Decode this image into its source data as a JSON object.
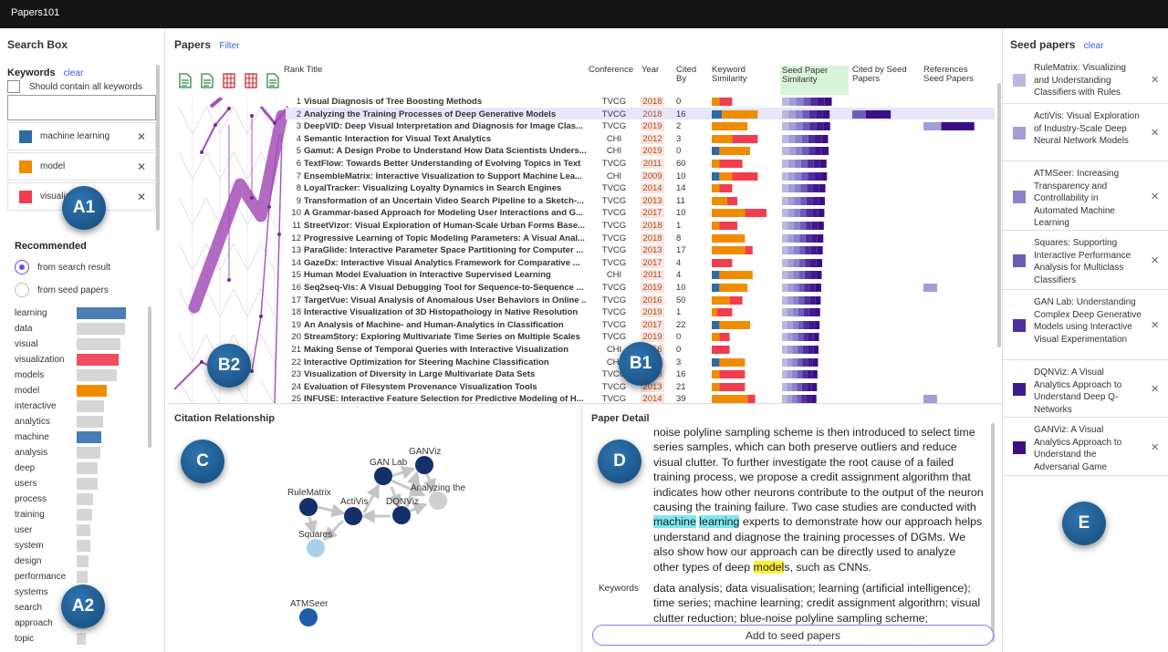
{
  "app": {
    "title": "Papers101"
  },
  "search_box": {
    "title": "Search Box",
    "keywords_label": "Keywords",
    "clear_label": "clear",
    "contain_all_label": "Should contain all keywords",
    "input_value": "",
    "keywords": [
      {
        "label": "machine learning",
        "color": "#2f6aa3"
      },
      {
        "label": "model",
        "color": "#f08c00"
      },
      {
        "label": "visualization",
        "color": "#f03e4e"
      }
    ]
  },
  "recommended": {
    "title": "Recommended",
    "options": [
      {
        "label": "from search result",
        "selected": true
      },
      {
        "label": "from seed papers",
        "selected": false
      }
    ],
    "keywords": [
      {
        "label": "learning",
        "value": 1.0,
        "color": "#4a7db3"
      },
      {
        "label": "data",
        "value": 0.98,
        "color": "#d6d6d6"
      },
      {
        "label": "visual",
        "value": 0.88,
        "color": "#d6d6d6"
      },
      {
        "label": "visualization",
        "value": 0.86,
        "color": "#f04e5e"
      },
      {
        "label": "models",
        "value": 0.82,
        "color": "#d6d6d6"
      },
      {
        "label": "model",
        "value": 0.62,
        "color": "#f08c00"
      },
      {
        "label": "interactive",
        "value": 0.56,
        "color": "#d6d6d6"
      },
      {
        "label": "analytics",
        "value": 0.53,
        "color": "#d6d6d6"
      },
      {
        "label": "machine",
        "value": 0.5,
        "color": "#4a7db3"
      },
      {
        "label": "analysis",
        "value": 0.48,
        "color": "#d6d6d6"
      },
      {
        "label": "deep",
        "value": 0.43,
        "color": "#d6d6d6"
      },
      {
        "label": "users",
        "value": 0.42,
        "color": "#d6d6d6"
      },
      {
        "label": "process",
        "value": 0.33,
        "color": "#d6d6d6"
      },
      {
        "label": "training",
        "value": 0.32,
        "color": "#d6d6d6"
      },
      {
        "label": "user",
        "value": 0.28,
        "color": "#d6d6d6"
      },
      {
        "label": "system",
        "value": 0.27,
        "color": "#d6d6d6"
      },
      {
        "label": "design",
        "value": 0.24,
        "color": "#d6d6d6"
      },
      {
        "label": "performance",
        "value": 0.23,
        "color": "#d6d6d6"
      },
      {
        "label": "systems",
        "value": 0.22,
        "color": "#d6d6d6"
      },
      {
        "label": "search",
        "value": 0.21,
        "color": "#d6d6d6"
      },
      {
        "label": "approach",
        "value": 0.2,
        "color": "#d6d6d6"
      },
      {
        "label": "topic",
        "value": 0.19,
        "color": "#d6d6d6"
      }
    ]
  },
  "papers": {
    "title": "Papers",
    "filter_label": "Filter",
    "columns": {
      "rank_title": "Rank Title",
      "conference": "Conference",
      "year": "Year",
      "cited_by": "Cited By",
      "keyword_similarity": "Keyword Similarity",
      "seed_similarity": "Seed Paper Similarity",
      "cited_by_seed": "Cited by Seed Papers",
      "references_seed": "References Seed Papers"
    },
    "rows": [
      {
        "rank": "1",
        "title": "Visual Diagnosis of Tree Boosting Methods",
        "conf": "TVCG",
        "year": "2018",
        "cited": "0",
        "kw": [
          0,
          0.03,
          0.05
        ],
        "seed": 0.94,
        "citedby": 0,
        "refs": 0
      },
      {
        "rank": "2",
        "title": "Analyzing the Training Processes of Deep Generative Models",
        "conf": "TVCG",
        "year": "2018",
        "cited": "16",
        "kw": [
          0.04,
          0.14,
          0
        ],
        "seed": 0.9,
        "citedby": 0.62,
        "refs": 0,
        "selected": true
      },
      {
        "rank": "3",
        "title": "DeepVID: Deep Visual Interpretation and Diagnosis for Image Clas...",
        "conf": "TVCG",
        "year": "2019",
        "cited": "2",
        "kw": [
          0,
          0.14,
          0
        ],
        "seed": 0.91,
        "citedby": 0,
        "refs": 0.82
      },
      {
        "rank": "4",
        "title": "Semantic Interaction for Visual Text Analytics",
        "conf": "CHI",
        "year": "2012",
        "cited": "3",
        "kw": [
          0,
          0.08,
          0.1
        ],
        "seed": 0.87,
        "citedby": 0,
        "refs": 0
      },
      {
        "rank": "5",
        "title": "Gamut: A Design Probe to Understand How Data Scientists Unders...",
        "conf": "CHI",
        "year": "2019",
        "cited": "0",
        "kw": [
          0.03,
          0.12,
          0
        ],
        "seed": 0.88,
        "citedby": 0,
        "refs": 0
      },
      {
        "rank": "6",
        "title": "TextFlow: Towards Better Understanding of Evolving Topics in Text",
        "conf": "TVCG",
        "year": "2011",
        "cited": "60",
        "kw": [
          0,
          0.03,
          0.09
        ],
        "seed": 0.84,
        "citedby": 0,
        "refs": 0
      },
      {
        "rank": "7",
        "title": "EnsembleMatrix: Interactive Visualization to Support Machine Lea...",
        "conf": "CHI",
        "year": "2009",
        "cited": "10",
        "kw": [
          0.03,
          0.05,
          0.1
        ],
        "seed": 0.85,
        "citedby": 0,
        "refs": 0
      },
      {
        "rank": "8",
        "title": "LoyalTracker: Visualizing Loyalty Dynamics in Search Engines",
        "conf": "TVCG",
        "year": "2014",
        "cited": "14",
        "kw": [
          0,
          0.03,
          0.05
        ],
        "seed": 0.82,
        "citedby": 0,
        "refs": 0
      },
      {
        "rank": "9",
        "title": "Transformation of an Uncertain Video Search Pipeline to a Sketch-...",
        "conf": "TVCG",
        "year": "2013",
        "cited": "11",
        "kw": [
          0,
          0.06,
          0.04
        ],
        "seed": 0.81,
        "citedby": 0,
        "refs": 0
      },
      {
        "rank": "10",
        "title": "A Grammar-based Approach for Modeling User Interactions and G...",
        "conf": "TVCG",
        "year": "2017",
        "cited": "10",
        "kw": [
          0,
          0.13,
          0.13
        ],
        "seed": 0.8,
        "citedby": 0,
        "refs": 0
      },
      {
        "rank": "11",
        "title": "StreetVizor: Visual Exploration of Human-Scale Urban Forms Base...",
        "conf": "TVCG",
        "year": "2018",
        "cited": "1",
        "kw": [
          0,
          0.03,
          0.07
        ],
        "seed": 0.79,
        "citedby": 0,
        "refs": 0
      },
      {
        "rank": "12",
        "title": "Progressive Learning of Topic Modeling Parameters: A Visual Anal...",
        "conf": "TVCG",
        "year": "2018",
        "cited": "8",
        "kw": [
          0,
          0.13,
          0
        ],
        "seed": 0.78,
        "citedby": 0,
        "refs": 0
      },
      {
        "rank": "13",
        "title": "ParaGlide: Interactive Parameter Space Partitioning for Computer ...",
        "conf": "TVCG",
        "year": "2013",
        "cited": "17",
        "kw": [
          0,
          0.13,
          0.03
        ],
        "seed": 0.77,
        "citedby": 0,
        "refs": 0
      },
      {
        "rank": "14",
        "title": "GazeDx: Interactive Visual Analytics Framework for Comparative ...",
        "conf": "TVCG",
        "year": "2017",
        "cited": "4",
        "kw": [
          0,
          0,
          0.08
        ],
        "seed": 0.76,
        "citedby": 0,
        "refs": 0
      },
      {
        "rank": "15",
        "title": "Human Model Evaluation in Interactive Supervised Learning",
        "conf": "CHI",
        "year": "2011",
        "cited": "4",
        "kw": [
          0.03,
          0.13,
          0
        ],
        "seed": 0.75,
        "citedby": 0,
        "refs": 0
      },
      {
        "rank": "16",
        "title": "Seq2seq-Vis: A Visual Debugging Tool for Sequence-to-Sequence ...",
        "conf": "TVCG",
        "year": "2019",
        "cited": "10",
        "kw": [
          0.03,
          0.11,
          0
        ],
        "seed": 0.74,
        "citedby": 0,
        "refs": 0.22
      },
      {
        "rank": "17",
        "title": "TargetVue: Visual Analysis of Anomalous User Behaviors in Online ...",
        "conf": "TVCG",
        "year": "2016",
        "cited": "50",
        "kw": [
          0,
          0.07,
          0.05
        ],
        "seed": 0.73,
        "citedby": 0,
        "refs": 0
      },
      {
        "rank": "18",
        "title": "Interactive Visualization of 3D Histopathology in Native Resolution",
        "conf": "TVCG",
        "year": "2019",
        "cited": "1",
        "kw": [
          0,
          0.02,
          0.06
        ],
        "seed": 0.72,
        "citedby": 0,
        "refs": 0
      },
      {
        "rank": "19",
        "title": "An Analysis of Machine- and Human-Analytics in Classification",
        "conf": "TVCG",
        "year": "2017",
        "cited": "22",
        "kw": [
          0.03,
          0.12,
          0
        ],
        "seed": 0.71,
        "citedby": 0,
        "refs": 0
      },
      {
        "rank": "20",
        "title": "StreamStory: Exploring Multivariate Time Series on Multiple Scales",
        "conf": "TVCG",
        "year": "2019",
        "cited": "0",
        "kw": [
          0,
          0.03,
          0.04
        ],
        "seed": 0.7,
        "citedby": 0,
        "refs": 0
      },
      {
        "rank": "21",
        "title": "Making Sense of Temporal Queries with Interactive Visualization",
        "conf": "CHI",
        "year": "2016",
        "cited": "0",
        "kw": [
          0,
          0,
          0.07
        ],
        "seed": 0.69,
        "citedby": 0,
        "refs": 0
      },
      {
        "rank": "22",
        "title": "Interactive Optimization for Steering Machine Classification",
        "conf": "CHI",
        "year": "2010",
        "cited": "3",
        "kw": [
          0.03,
          0.1,
          0
        ],
        "seed": 0.68,
        "citedby": 0,
        "refs": 0
      },
      {
        "rank": "23",
        "title": "Visualization of Diversity in Large Multivariate Data Sets",
        "conf": "TVCG",
        "year": "2010",
        "cited": "16",
        "kw": [
          0,
          0.03,
          0.1
        ],
        "seed": 0.67,
        "citedby": 0,
        "refs": 0
      },
      {
        "rank": "24",
        "title": "Evaluation of Filesystem Provenance Visualization Tools",
        "conf": "TVCG",
        "year": "2013",
        "cited": "21",
        "kw": [
          0,
          0.03,
          0.1
        ],
        "seed": 0.66,
        "citedby": 0,
        "refs": 0
      },
      {
        "rank": "25",
        "title": "INFUSE: Interactive Feature Selection for Predictive Modeling of H...",
        "conf": "TVCG",
        "year": "2014",
        "cited": "39",
        "kw": [
          0,
          0.14,
          0.03
        ],
        "seed": 0.65,
        "citedby": 0,
        "refs": 0.22
      }
    ]
  },
  "citation": {
    "title": "Citation Relationship",
    "nodes": [
      {
        "label": "RuleMatrix",
        "color": "#14306b"
      },
      {
        "label": "ActiVis",
        "color": "#14306b"
      },
      {
        "label": "Squares",
        "color": "#a9d1ee"
      },
      {
        "label": "GAN Lab",
        "color": "#14306b"
      },
      {
        "label": "GANViz",
        "color": "#14306b"
      },
      {
        "label": "DQNViz",
        "color": "#14306b"
      },
      {
        "label": "Analyzing the",
        "color": "#cfcfcf"
      },
      {
        "label": "ATMSeer",
        "color": "#1c5ea8"
      }
    ]
  },
  "detail": {
    "title": "Paper Detail",
    "abstract": {
      "before_ml": "noise polyline sampling scheme is then introduced to select time series samples, which can both preserve outliers and reduce visual clutter. To further investigate the root cause of a failed training process, we propose a credit assignment algorithm that indicates how other neurons contribute to the output of the neuron causing the training failure. Two case studies are conducted with ",
      "ml_1": "machine",
      "ml_space": " ",
      "ml_2": "learning",
      "middle": " experts to demonstrate how our approach helps understand and diagnose the training processes of DGMs. We also show how our approach can be directly used to analyze other types of deep ",
      "model": "model",
      "after": "s, such as CNNs."
    },
    "keywords_label": "Keywords",
    "keywords_text": "data analysis; data visualisation; learning (artificial intelligence); time series; machine learning; credit assignment algorithm; visual clutter reduction; blue-noise polyline sampling scheme;",
    "add_button": "Add to seed papers"
  },
  "seed_papers": {
    "title": "Seed papers",
    "clear_label": "clear",
    "items": [
      {
        "title": "RuleMatrix: Visualizing and Understanding Classifiers with Rules",
        "color": "#b8b8e0"
      },
      {
        "title": "ActiVis: Visual Exploration of Industry-Scale Deep Neural Network Models",
        "color": "#a29ed6"
      },
      {
        "title": "ATMSeer: Increasing Transparency and Controllability in Automated Machine Learning",
        "color": "#8a82cc"
      },
      {
        "title": "Squares: Supporting Interactive Performance Analysis for Multiclass Classifiers",
        "color": "#6e5bb8"
      },
      {
        "title": "GAN Lab: Understanding Complex Deep Generative Models using Interactive Visual Experimentation",
        "color": "#4e2f9e"
      },
      {
        "title": "DQNViz: A Visual Analytics Approach to Understand Deep Q-Networks",
        "color": "#3f1a8e"
      },
      {
        "title": "GANViz: A Visual Analytics Approach to Understand the Adversarial Game",
        "color": "#3a0f86"
      }
    ]
  },
  "callouts": [
    "A1",
    "A2",
    "B1",
    "B2",
    "C",
    "D",
    "E"
  ]
}
